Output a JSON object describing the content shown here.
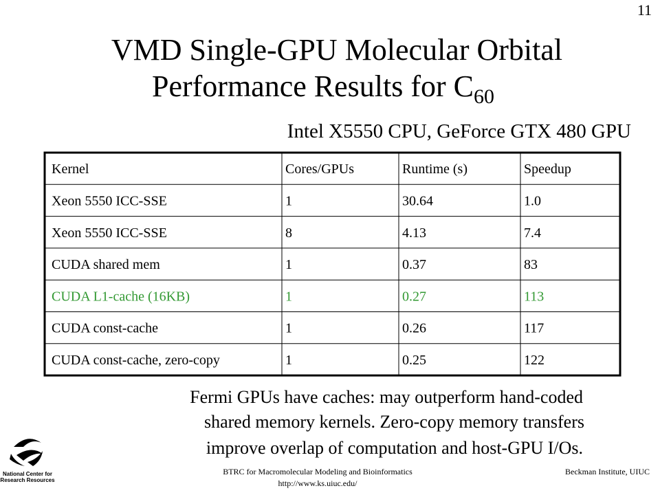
{
  "slide_number": "11",
  "title": {
    "lines": [
      "VMD Single-GPU Molecular Orbital",
      "Performance Results for C"
    ],
    "subscript": "60"
  },
  "subtitle": "Intel X5550 CPU, GeForce GTX 480 GPU",
  "table": {
    "header": [
      "Kernel",
      "Cores/GPUs",
      "Runtime (s)",
      "Speedup"
    ],
    "rows": [
      [
        "Xeon 5550 ICC-SSE",
        "1",
        "30.64",
        "1.0"
      ],
      [
        "Xeon 5550 ICC-SSE",
        "8",
        "4.13",
        "7.4"
      ],
      [
        "CUDA shared mem",
        "1",
        "0.37",
        "83"
      ],
      [
        "CUDA L1-cache (16KB)",
        "1",
        "0.27",
        "113"
      ],
      [
        "CUDA const-cache",
        "1",
        "0.26",
        "117"
      ],
      [
        "CUDA const-cache, zero-copy",
        "1",
        "0.25",
        "122"
      ]
    ],
    "highlight_row": 3,
    "highlight_color": "#339933"
  },
  "body": [
    "Fermi GPUs have caches: may outperform hand-coded",
    "shared memory kernels. Zero-copy memory transfers",
    "improve overlap of computation and host-GPU I/Os."
  ],
  "footer": {
    "center": [
      "BTRC for Macromolecular Modeling and Bioinformatics",
      "http://www.ks.uiuc.edu/"
    ],
    "right": "Beckman Institute, UIUC"
  },
  "logo": [
    "National Center for",
    "Research Resources"
  ]
}
